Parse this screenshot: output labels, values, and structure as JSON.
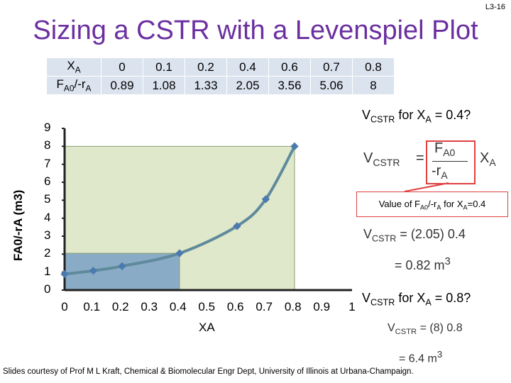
{
  "slide": {
    "number": "L3-16",
    "title": "Sizing a CSTR with a Levenspiel Plot",
    "credit": "Slides courtesy of Prof M L Kraft, Chemical & Biomolecular Engr Dept, University of Illinois at Urbana-Champaign."
  },
  "table": {
    "row_x_label": "X",
    "row_x_sub": "A",
    "row_y_label_main": "F",
    "row_y_sub1": "A0",
    "row_y_mid": "/-r",
    "row_y_sub2": "A",
    "xa_values": [
      "0",
      "0.1",
      "0.2",
      "0.4",
      "0.6",
      "0.7",
      "0.8"
    ],
    "fa0_values": [
      "0.89",
      "1.08",
      "1.33",
      "2.05",
      "3.56",
      "5.06",
      "8"
    ]
  },
  "chart_data": {
    "type": "line",
    "x": [
      0,
      0.1,
      0.2,
      0.4,
      0.6,
      0.7,
      0.8
    ],
    "y": [
      0.89,
      1.08,
      1.33,
      2.05,
      3.56,
      5.06,
      8
    ],
    "xlabel": "XA",
    "ylabel": "FA0/-rA (m3)",
    "xlim": [
      0,
      1
    ],
    "ylim": [
      0,
      9
    ],
    "xticks": [
      "0",
      "0.1",
      "0.2",
      "0.3",
      "0.4",
      "0.5",
      "0.6",
      "0.7",
      "0.8",
      "0.9",
      "1"
    ],
    "yticks": [
      "0",
      "1",
      "2",
      "3",
      "4",
      "5",
      "6",
      "7",
      "8",
      "9"
    ],
    "shaded": [
      {
        "x_max": 0.4,
        "y": 2.05,
        "color": "#7fa4c4"
      },
      {
        "x_max": 0.8,
        "y": 8,
        "color": "#dfe8cb"
      }
    ],
    "line_color": "#5f8a9c"
  },
  "equations": {
    "q1_pre": "V",
    "q1_sub": "CSTR",
    "q1_mid": " for X",
    "q1_sub2": "A",
    "q1_post": " = 0.4?",
    "v_lhs": "V",
    "v_sub": "CSTR",
    "eq_sign": "=",
    "frac_num": "F",
    "frac_num_sub": "A0",
    "frac_den": "-r",
    "frac_den_sub": "A",
    "x_term": "X",
    "x_term_sub": "A",
    "callout_pre": "Value of F",
    "callout_sub1": "A0",
    "callout_mid": "/-r",
    "callout_sub2": "A",
    "callout_mid2": " for X",
    "callout_sub3": "A",
    "callout_post": "=0.4",
    "calc1": "= (2.05) 0.4",
    "res1": "= 0.82 m",
    "res1_sup": "3",
    "q2_pre": "V",
    "q2_sub": "CSTR",
    "q2_mid": " for X",
    "q2_sub2": "A",
    "q2_post": " = 0.8?",
    "calc2": "= (8) 0.8",
    "res2": "= 6.4 m",
    "res2_sup": "3"
  }
}
